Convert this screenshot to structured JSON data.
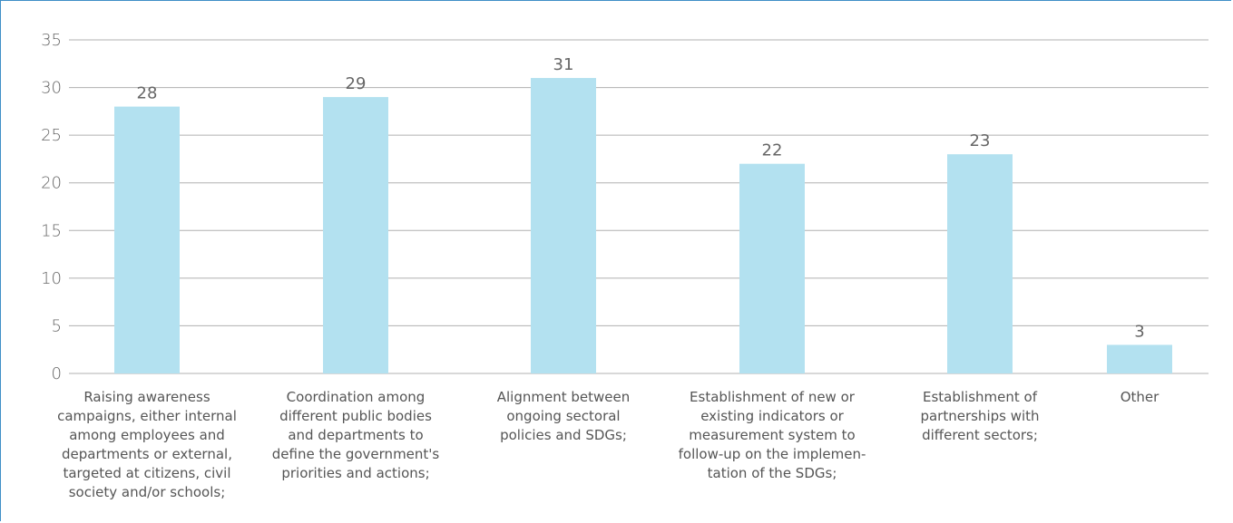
{
  "chart_data": {
    "type": "bar",
    "categories": [
      "Raising awareness campaigns, either internal among employees and departments or external, targeted at citizens, civil society and/or schools;",
      "Coordination among different public bodies and departments to define the government's priorities and actions;",
      "Alignment between ongoing sectoral policies and SDGs;",
      "Establishment of new or existing indicators or measurement system to follow-up on the implementation of the SDGs;",
      "Establishment of partnerships with different sectors;",
      "Other"
    ],
    "category_lines": [
      [
        "Raising awareness",
        "campaigns, either internal",
        "among employees and",
        "departments or external,",
        "targeted at citizens, civil",
        "society and/or schools;"
      ],
      [
        "Coordination among",
        "different public bodies",
        "and departments to",
        "define the government's",
        "priorities and actions;"
      ],
      [
        "Alignment between",
        "ongoing sectoral",
        "policies and SDGs;"
      ],
      [
        "Establishment of new or",
        "existing indicators or",
        "measurement system to",
        "follow-up on the implemen-",
        "tation of the SDGs;"
      ],
      [
        "Establishment of",
        "partnerships with",
        "different sectors;"
      ],
      [
        "Other"
      ]
    ],
    "values": [
      28,
      29,
      31,
      22,
      23,
      3
    ],
    "ylim": [
      0,
      35
    ],
    "yticks": [
      0,
      5,
      10,
      15,
      20,
      25,
      30,
      35
    ],
    "bar_color": "#b3e1f0",
    "grid_color": "#b0b0b0",
    "grid": true,
    "title": "",
    "xlabel": "",
    "ylabel": ""
  }
}
